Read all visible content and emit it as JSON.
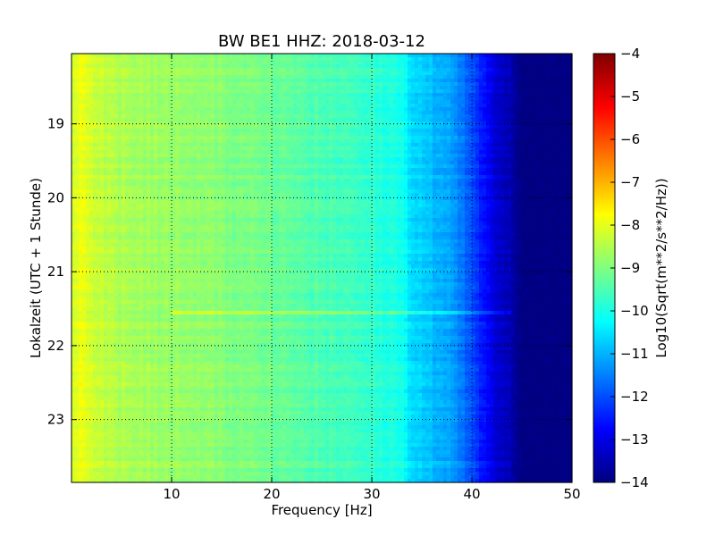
{
  "chart_data": {
    "type": "heatmap",
    "title": "BW BE1 HHZ: 2018-03-12",
    "xlabel": "Frequency [Hz]",
    "ylabel": "Lokalzeit (UTC + 1 Stunde)",
    "xlim": [
      0,
      50
    ],
    "ylim": [
      18.05,
      23.85
    ],
    "y_inverted": true,
    "grid": true,
    "x_ticks": [
      10,
      20,
      30,
      40,
      50
    ],
    "y_ticks": [
      19,
      20,
      21,
      22,
      23
    ],
    "colormap": "jet",
    "colorbar": {
      "label": "Log10(Sqrt(m**2/s**2/Hz))",
      "range": [
        -14,
        -4
      ],
      "ticks": [
        -4,
        -5,
        -6,
        -7,
        -8,
        -9,
        -10,
        -11,
        -12,
        -13,
        -14
      ]
    },
    "spectrum_profile": {
      "frequency_hz": [
        0.3,
        1,
        2,
        4,
        8,
        12,
        16,
        20,
        25,
        30,
        33,
        34,
        36,
        38,
        39,
        40,
        41,
        42,
        43,
        44,
        45,
        50
      ],
      "log10_amplitude": [
        -8.2,
        -7.9,
        -8.2,
        -8.5,
        -8.7,
        -8.8,
        -9.0,
        -9.2,
        -9.5,
        -9.8,
        -10.0,
        -10.6,
        -10.9,
        -11.2,
        -11.6,
        -12.0,
        -12.5,
        -13.0,
        -13.3,
        -13.6,
        -14.0,
        -14.0
      ]
    },
    "features": [
      {
        "type": "horizontal_band",
        "time_hour": 21.55,
        "freq_range_hz": [
          10,
          44
        ],
        "delta": 0.8
      }
    ]
  }
}
